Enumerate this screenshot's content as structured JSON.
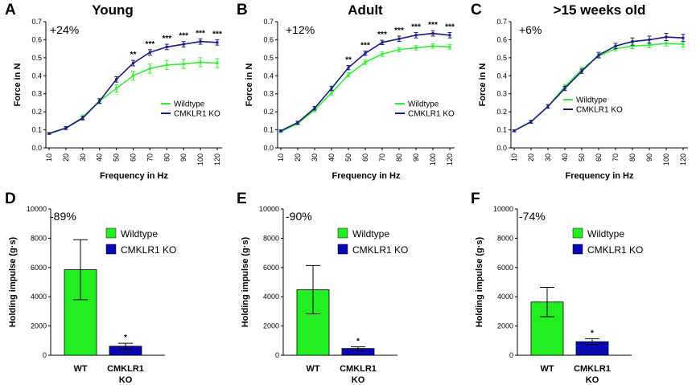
{
  "colors": {
    "wildtype": "#33ee33",
    "ko": "#1a1a80",
    "bar_wildtype": "#22ee22",
    "bar_ko": "#0a0ab4"
  },
  "chart_data": [
    {
      "letter": "A",
      "type": "line",
      "title": "Young",
      "change": "+24%",
      "xlabel": "Frequency in Hz",
      "ylabel": "Force in N",
      "ylim": [
        0,
        0.7
      ],
      "yticks": [
        "0.0",
        "0.1",
        "0.2",
        "0.3",
        "0.4",
        "0.5",
        "0.6",
        "0.7"
      ],
      "x": [
        "10",
        "20",
        "30",
        "40",
        "50",
        "60",
        "70",
        "80",
        "90",
        "100",
        "120"
      ],
      "series": [
        {
          "name": "Wildtype",
          "values": [
            0.08,
            0.11,
            0.17,
            0.26,
            0.33,
            0.4,
            0.44,
            0.46,
            0.465,
            0.475,
            0.47
          ],
          "errors": [
            0.005,
            0.008,
            0.012,
            0.015,
            0.02,
            0.025,
            0.025,
            0.025,
            0.025,
            0.025,
            0.025
          ]
        },
        {
          "name": "CMKLR1 KO",
          "values": [
            0.08,
            0.11,
            0.165,
            0.26,
            0.38,
            0.47,
            0.53,
            0.56,
            0.575,
            0.59,
            0.585
          ],
          "errors": [
            0.005,
            0.008,
            0.01,
            0.012,
            0.015,
            0.015,
            0.015,
            0.015,
            0.015,
            0.015,
            0.015
          ]
        }
      ],
      "significance": [
        "",
        "",
        "",
        "",
        "",
        "**",
        "***",
        "***",
        "***",
        "***",
        "***"
      ],
      "legend": [
        "Wildtype",
        "CMKLR1 KO"
      ]
    },
    {
      "letter": "B",
      "type": "line",
      "title": "Adult",
      "change": "+12%",
      "xlabel": "Frequency in Hz",
      "ylabel": "Force in N",
      "ylim": [
        0,
        0.7
      ],
      "yticks": [
        "0.0",
        "0.1",
        "0.2",
        "0.3",
        "0.4",
        "0.5",
        "0.6",
        "0.7"
      ],
      "x": [
        "10",
        "20",
        "30",
        "40",
        "50",
        "60",
        "70",
        "80",
        "90",
        "100",
        "120"
      ],
      "series": [
        {
          "name": "Wildtype",
          "values": [
            0.09,
            0.135,
            0.21,
            0.305,
            0.405,
            0.475,
            0.52,
            0.545,
            0.555,
            0.565,
            0.56
          ],
          "errors": [
            0.005,
            0.008,
            0.01,
            0.012,
            0.012,
            0.012,
            0.012,
            0.012,
            0.012,
            0.012,
            0.012
          ]
        },
        {
          "name": "CMKLR1 KO",
          "values": [
            0.095,
            0.14,
            0.22,
            0.33,
            0.445,
            0.525,
            0.585,
            0.605,
            0.625,
            0.635,
            0.625
          ],
          "errors": [
            0.005,
            0.008,
            0.01,
            0.012,
            0.012,
            0.012,
            0.012,
            0.015,
            0.015,
            0.015,
            0.015
          ]
        }
      ],
      "significance": [
        "",
        "",
        "",
        "",
        "**",
        "***",
        "***",
        "***",
        "***",
        "***",
        "***"
      ],
      "legend": [
        "Wildtype",
        "CMKLR1 KO"
      ]
    },
    {
      "letter": "C",
      "type": "line",
      "title": ">15 weeks old",
      "change": "+6%",
      "xlabel": "Frequency in Hz",
      "ylabel": "Force in N",
      "ylim": [
        0,
        0.7
      ],
      "yticks": [
        "0.0",
        "0.1",
        "0.2",
        "0.3",
        "0.4",
        "0.5",
        "0.6",
        "0.7"
      ],
      "x": [
        "10",
        "20",
        "30",
        "40",
        "50",
        "60",
        "70",
        "80",
        "90",
        "100",
        "120"
      ],
      "series": [
        {
          "name": "Wildtype",
          "values": [
            0.095,
            0.145,
            0.23,
            0.34,
            0.435,
            0.51,
            0.55,
            0.565,
            0.57,
            0.58,
            0.575
          ],
          "errors": [
            0.005,
            0.008,
            0.01,
            0.012,
            0.012,
            0.012,
            0.012,
            0.015,
            0.015,
            0.015,
            0.015
          ]
        },
        {
          "name": "CMKLR1 KO",
          "values": [
            0.095,
            0.145,
            0.23,
            0.33,
            0.425,
            0.515,
            0.565,
            0.59,
            0.6,
            0.615,
            0.61
          ],
          "errors": [
            0.005,
            0.008,
            0.01,
            0.012,
            0.012,
            0.015,
            0.015,
            0.02,
            0.02,
            0.02,
            0.02
          ]
        }
      ],
      "significance": [
        "",
        "",
        "",
        "",
        "",
        "",
        "",
        "",
        "",
        "",
        ""
      ],
      "legend": [
        "Wildtype",
        "CMKLR1 KO"
      ]
    },
    {
      "letter": "D",
      "type": "bar",
      "change": "-89%",
      "ylabel": "Holding impulse (g·s)",
      "ylim": [
        0,
        10000
      ],
      "yticks": [
        "0",
        "2000",
        "4000",
        "6000",
        "8000",
        "10000"
      ],
      "categories": [
        "WT",
        "CMKLR1\nKO"
      ],
      "values": [
        5850,
        620
      ],
      "errors": [
        2050,
        200
      ],
      "significance": [
        "",
        "*"
      ],
      "legend": [
        "Wildtype",
        "CMKLR1 KO"
      ]
    },
    {
      "letter": "E",
      "type": "bar",
      "change": "-90%",
      "ylabel": "Holding impulse (g·s)",
      "ylim": [
        0,
        10000
      ],
      "yticks": [
        "0",
        "2000",
        "4000",
        "6000",
        "8000",
        "10000"
      ],
      "categories": [
        "WT",
        "CMKLR1\nKO"
      ],
      "values": [
        4480,
        460
      ],
      "errors": [
        1650,
        120
      ],
      "significance": [
        "",
        "*"
      ],
      "legend": [
        "Wildtype",
        "CMKLR1 KO"
      ]
    },
    {
      "letter": "F",
      "type": "bar",
      "change": "-74%",
      "ylabel": "Holding impulse (g·s)",
      "ylim": [
        0,
        10000
      ],
      "yticks": [
        "0",
        "2000",
        "4000",
        "6000",
        "8000",
        "10000"
      ],
      "categories": [
        "WT",
        "CMKLR1\nKO"
      ],
      "values": [
        3640,
        930
      ],
      "errors": [
        1000,
        200
      ],
      "significance": [
        "",
        "*"
      ],
      "legend": [
        "Wildtype",
        "CMKLR1 KO"
      ]
    }
  ]
}
